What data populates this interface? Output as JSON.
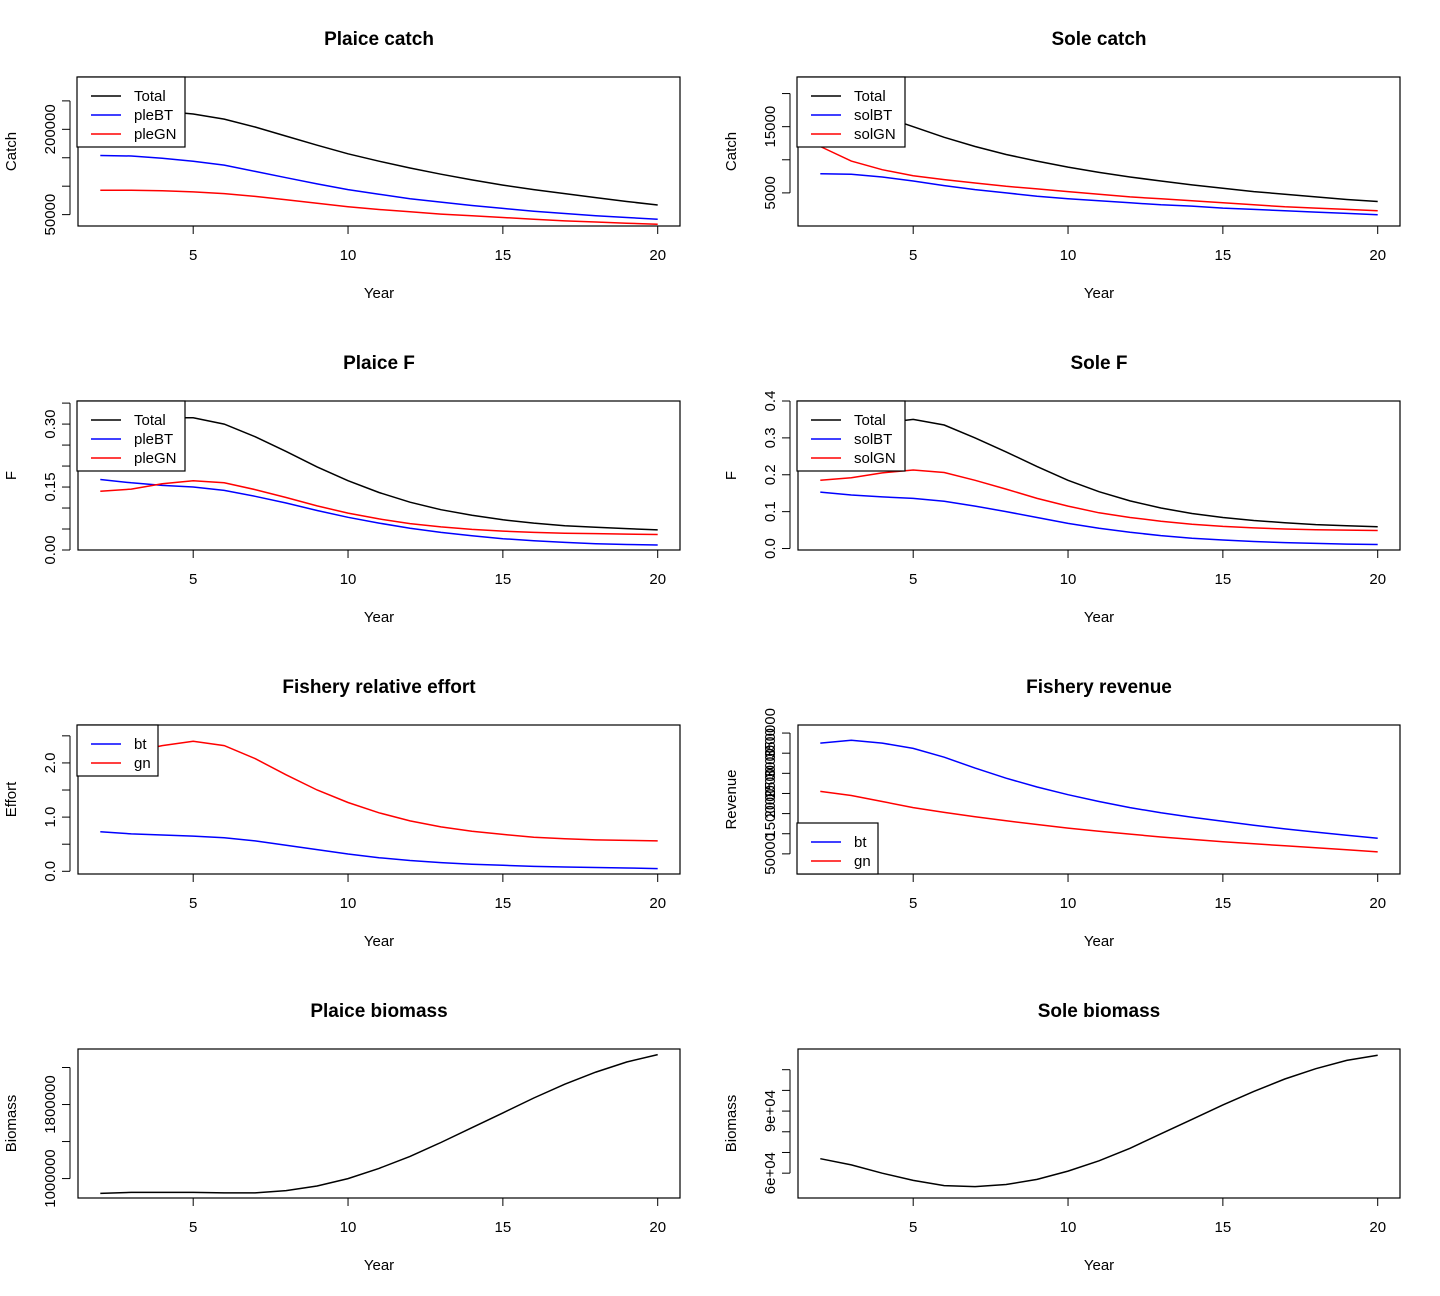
{
  "colors": {
    "black": "#000000",
    "blue": "#0000ff",
    "red": "#ff0000"
  },
  "chart_data": [
    {
      "type": "line",
      "title": "Plaice catch",
      "xlabel": "Year",
      "ylabel": "Catch",
      "xlim": [
        1.28,
        20.72
      ],
      "ylim": [
        30000,
        292000
      ],
      "xticks": [
        {
          "value": 5,
          "label": "5"
        },
        {
          "value": 10,
          "label": "10"
        },
        {
          "value": 15,
          "label": "15"
        },
        {
          "value": 20,
          "label": "20"
        }
      ],
      "yticks": [
        {
          "value": 50000,
          "label": "50000"
        },
        {
          "value": 100000,
          "label": ""
        },
        {
          "value": 150000,
          "label": ""
        },
        {
          "value": 200000,
          "label": "200000"
        },
        {
          "value": 250000,
          "label": ""
        }
      ],
      "legend": {
        "position": "top-left"
      },
      "x": [
        2,
        3,
        4,
        5,
        6,
        7,
        8,
        9,
        10,
        11,
        12,
        13,
        14,
        15,
        16,
        17,
        18,
        19,
        20
      ],
      "series": [
        {
          "name": "Total",
          "color": "black",
          "values": [
            233000,
            234000,
            232000,
            227000,
            218000,
            204000,
            188000,
            172000,
            157000,
            144000,
            132000,
            121000,
            111000,
            102000,
            94000,
            87000,
            80000,
            73000,
            67000
          ]
        },
        {
          "name": "pleBT",
          "color": "blue",
          "values": [
            154000,
            153000,
            149000,
            144000,
            137000,
            126000,
            115000,
            104000,
            94000,
            86000,
            78000,
            72000,
            66000,
            61000,
            56000,
            52000,
            48000,
            45000,
            42000
          ]
        },
        {
          "name": "pleGN",
          "color": "red",
          "values": [
            93000,
            93000,
            92000,
            90000,
            87000,
            82000,
            76000,
            70000,
            64000,
            59000,
            55000,
            51000,
            48000,
            45000,
            42000,
            39000,
            37000,
            35000,
            33000
          ]
        }
      ]
    },
    {
      "type": "line",
      "title": "Sole catch",
      "xlabel": "Year",
      "ylabel": "Catch",
      "xlim": [
        1.28,
        20.72
      ],
      "ylim": [
        0,
        22500
      ],
      "xticks": [
        {
          "value": 5,
          "label": "5"
        },
        {
          "value": 10,
          "label": "10"
        },
        {
          "value": 15,
          "label": "15"
        },
        {
          "value": 20,
          "label": "20"
        }
      ],
      "yticks": [
        {
          "value": 5000,
          "label": "5000"
        },
        {
          "value": 10000,
          "label": ""
        },
        {
          "value": 15000,
          "label": "15000"
        },
        {
          "value": 20000,
          "label": ""
        }
      ],
      "legend": {
        "position": "top-left"
      },
      "x": [
        2,
        3,
        4,
        5,
        6,
        7,
        8,
        9,
        10,
        11,
        12,
        13,
        14,
        15,
        16,
        17,
        18,
        19,
        20
      ],
      "series": [
        {
          "name": "Total",
          "color": "black",
          "values": [
            19800,
            18200,
            16600,
            15000,
            13400,
            12000,
            10800,
            9800,
            8900,
            8100,
            7400,
            6800,
            6200,
            5700,
            5200,
            4800,
            4400,
            4000,
            3700
          ]
        },
        {
          "name": "solBT",
          "color": "blue",
          "values": [
            7900,
            7800,
            7400,
            6800,
            6100,
            5500,
            5000,
            4500,
            4100,
            3800,
            3500,
            3200,
            3000,
            2700,
            2500,
            2300,
            2100,
            1900,
            1700
          ]
        },
        {
          "name": "solGN",
          "color": "red",
          "values": [
            12000,
            9800,
            8500,
            7600,
            7000,
            6500,
            6000,
            5600,
            5200,
            4800,
            4400,
            4100,
            3800,
            3500,
            3200,
            2900,
            2700,
            2500,
            2300
          ]
        }
      ]
    },
    {
      "type": "line",
      "title": "Plaice F",
      "xlabel": "Year",
      "ylabel": "F",
      "xlim": [
        1.28,
        20.72
      ],
      "ylim": [
        0,
        0.355
      ],
      "xticks": [
        {
          "value": 5,
          "label": "5"
        },
        {
          "value": 10,
          "label": "10"
        },
        {
          "value": 15,
          "label": "15"
        },
        {
          "value": 20,
          "label": "20"
        }
      ],
      "yticks": [
        {
          "value": 0.0,
          "label": "0.00"
        },
        {
          "value": 0.05,
          "label": ""
        },
        {
          "value": 0.1,
          "label": ""
        },
        {
          "value": 0.15,
          "label": "0.15"
        },
        {
          "value": 0.2,
          "label": ""
        },
        {
          "value": 0.25,
          "label": ""
        },
        {
          "value": 0.3,
          "label": "0.30"
        },
        {
          "value": 0.35,
          "label": ""
        }
      ],
      "legend": {
        "position": "top-left"
      },
      "x": [
        2,
        3,
        4,
        5,
        6,
        7,
        8,
        9,
        10,
        11,
        12,
        13,
        14,
        15,
        16,
        17,
        18,
        19,
        20
      ],
      "series": [
        {
          "name": "Total",
          "color": "black",
          "values": [
            0.305,
            0.31,
            0.315,
            0.315,
            0.3,
            0.27,
            0.235,
            0.198,
            0.165,
            0.137,
            0.114,
            0.096,
            0.083,
            0.072,
            0.064,
            0.058,
            0.054,
            0.051,
            0.048
          ]
        },
        {
          "name": "pleBT",
          "color": "blue",
          "values": [
            0.168,
            0.16,
            0.154,
            0.15,
            0.142,
            0.128,
            0.112,
            0.094,
            0.078,
            0.064,
            0.052,
            0.042,
            0.034,
            0.027,
            0.022,
            0.018,
            0.015,
            0.013,
            0.012
          ]
        },
        {
          "name": "pleGN",
          "color": "red",
          "values": [
            0.14,
            0.145,
            0.158,
            0.165,
            0.16,
            0.144,
            0.125,
            0.105,
            0.088,
            0.074,
            0.063,
            0.055,
            0.049,
            0.045,
            0.042,
            0.04,
            0.039,
            0.038,
            0.037
          ]
        }
      ]
    },
    {
      "type": "line",
      "title": "Sole F",
      "xlabel": "Year",
      "ylabel": "F",
      "xlim": [
        1.28,
        20.72
      ],
      "ylim": [
        -0.004,
        0.4
      ],
      "xticks": [
        {
          "value": 5,
          "label": "5"
        },
        {
          "value": 10,
          "label": "10"
        },
        {
          "value": 15,
          "label": "15"
        },
        {
          "value": 20,
          "label": "20"
        }
      ],
      "yticks": [
        {
          "value": 0.0,
          "label": "0.0"
        },
        {
          "value": 0.1,
          "label": "0.1"
        },
        {
          "value": 0.2,
          "label": "0.2"
        },
        {
          "value": 0.3,
          "label": "0.3"
        },
        {
          "value": 0.4,
          "label": "0.4"
        }
      ],
      "legend": {
        "position": "top-left"
      },
      "x": [
        2,
        3,
        4,
        5,
        6,
        7,
        8,
        9,
        10,
        11,
        12,
        13,
        14,
        15,
        16,
        17,
        18,
        19,
        20
      ],
      "series": [
        {
          "name": "Total",
          "color": "black",
          "values": [
            0.33,
            0.335,
            0.34,
            0.35,
            0.335,
            0.3,
            0.262,
            0.222,
            0.185,
            0.154,
            0.129,
            0.11,
            0.095,
            0.084,
            0.076,
            0.07,
            0.065,
            0.062,
            0.059
          ]
        },
        {
          "name": "solBT",
          "color": "blue",
          "values": [
            0.153,
            0.145,
            0.14,
            0.136,
            0.128,
            0.115,
            0.1,
            0.084,
            0.068,
            0.055,
            0.044,
            0.035,
            0.028,
            0.023,
            0.019,
            0.016,
            0.014,
            0.012,
            0.011
          ]
        },
        {
          "name": "solGN",
          "color": "red",
          "values": [
            0.185,
            0.192,
            0.205,
            0.213,
            0.206,
            0.185,
            0.161,
            0.136,
            0.115,
            0.097,
            0.084,
            0.074,
            0.066,
            0.06,
            0.056,
            0.053,
            0.051,
            0.05,
            0.049
          ]
        }
      ]
    },
    {
      "type": "line",
      "title": "Fishery relative effort",
      "xlabel": "Year",
      "ylabel": "Effort",
      "xlim": [
        1.28,
        20.72
      ],
      "ylim": [
        -0.05,
        2.7
      ],
      "xticks": [
        {
          "value": 5,
          "label": "5"
        },
        {
          "value": 10,
          "label": "10"
        },
        {
          "value": 15,
          "label": "15"
        },
        {
          "value": 20,
          "label": "20"
        }
      ],
      "yticks": [
        {
          "value": 0.0,
          "label": "0.0"
        },
        {
          "value": 0.5,
          "label": ""
        },
        {
          "value": 1.0,
          "label": "1.0"
        },
        {
          "value": 1.5,
          "label": ""
        },
        {
          "value": 2.0,
          "label": "2.0"
        },
        {
          "value": 2.5,
          "label": ""
        }
      ],
      "legend": {
        "position": "top-left"
      },
      "x": [
        2,
        3,
        4,
        5,
        6,
        7,
        8,
        9,
        10,
        11,
        12,
        13,
        14,
        15,
        16,
        17,
        18,
        19,
        20
      ],
      "series": [
        {
          "name": "bt",
          "color": "blue",
          "values": [
            0.73,
            0.69,
            0.67,
            0.65,
            0.62,
            0.56,
            0.48,
            0.4,
            0.32,
            0.25,
            0.2,
            0.16,
            0.13,
            0.11,
            0.09,
            0.08,
            0.07,
            0.06,
            0.05
          ]
        },
        {
          "name": "gn",
          "color": "red",
          "values": [
            1.95,
            2.2,
            2.32,
            2.4,
            2.32,
            2.08,
            1.78,
            1.5,
            1.27,
            1.08,
            0.93,
            0.82,
            0.74,
            0.68,
            0.63,
            0.6,
            0.58,
            0.57,
            0.56
          ]
        }
      ]
    },
    {
      "type": "line",
      "title": "Fishery revenue",
      "xlabel": "Year",
      "ylabel": "Revenue",
      "xlim": [
        1.28,
        20.72
      ],
      "ylim": [
        0,
        370000
      ],
      "xticks": [
        {
          "value": 5,
          "label": "5"
        },
        {
          "value": 10,
          "label": "10"
        },
        {
          "value": 15,
          "label": "15"
        },
        {
          "value": 20,
          "label": "20"
        }
      ],
      "yticks": [
        {
          "value": 50000,
          "label": "50000"
        },
        {
          "value": 100000,
          "label": ""
        },
        {
          "value": 150000,
          "label": "150000"
        },
        {
          "value": 200000,
          "label": "200000"
        },
        {
          "value": 250000,
          "label": "250000"
        },
        {
          "value": 300000,
          "label": "300000"
        },
        {
          "value": 350000,
          "label": "350000"
        }
      ],
      "legend": {
        "position": "bottom-left"
      },
      "x": [
        2,
        3,
        4,
        5,
        6,
        7,
        8,
        9,
        10,
        11,
        12,
        13,
        14,
        15,
        16,
        17,
        18,
        19,
        20
      ],
      "series": [
        {
          "name": "bt",
          "color": "blue",
          "values": [
            325000,
            332000,
            325000,
            312000,
            290000,
            263000,
            238000,
            216000,
            197000,
            180000,
            165000,
            152000,
            141000,
            131000,
            121000,
            112000,
            104000,
            96000,
            89000
          ]
        },
        {
          "name": "gn",
          "color": "red",
          "values": [
            205000,
            195000,
            180000,
            165000,
            153000,
            142000,
            132000,
            123000,
            114000,
            106000,
            99000,
            92000,
            86000,
            80000,
            75000,
            70000,
            65000,
            60000,
            55000
          ]
        }
      ]
    },
    {
      "type": "line",
      "title": "Plaice biomass",
      "xlabel": "Year",
      "ylabel": "Biomass",
      "xlim": [
        1.28,
        20.72
      ],
      "ylim": [
        790000,
        2400000
      ],
      "xticks": [
        {
          "value": 5,
          "label": "5"
        },
        {
          "value": 10,
          "label": "10"
        },
        {
          "value": 15,
          "label": "15"
        },
        {
          "value": 20,
          "label": "20"
        }
      ],
      "yticks": [
        {
          "value": 1000000,
          "label": "1000000"
        },
        {
          "value": 1400000,
          "label": ""
        },
        {
          "value": 1800000,
          "label": "1800000"
        },
        {
          "value": 2200000,
          "label": ""
        }
      ],
      "legend": null,
      "x": [
        2,
        3,
        4,
        5,
        6,
        7,
        8,
        9,
        10,
        11,
        12,
        13,
        14,
        15,
        16,
        17,
        18,
        19,
        20
      ],
      "series": [
        {
          "name": "Plaice biomass",
          "color": "black",
          "values": [
            840000,
            850000,
            850000,
            850000,
            845000,
            845000,
            870000,
            920000,
            1000000,
            1110000,
            1240000,
            1390000,
            1550000,
            1710000,
            1870000,
            2020000,
            2150000,
            2260000,
            2340000
          ]
        }
      ]
    },
    {
      "type": "line",
      "title": "Sole biomass",
      "xlabel": "Year",
      "ylabel": "Biomass",
      "xlim": [
        1.28,
        20.72
      ],
      "ylim": [
        48000,
        120000
      ],
      "xticks": [
        {
          "value": 5,
          "label": "5"
        },
        {
          "value": 10,
          "label": "10"
        },
        {
          "value": 15,
          "label": "15"
        },
        {
          "value": 20,
          "label": "20"
        }
      ],
      "yticks": [
        {
          "value": 60000,
          "label": "6e+04"
        },
        {
          "value": 70000,
          "label": ""
        },
        {
          "value": 80000,
          "label": ""
        },
        {
          "value": 90000,
          "label": "9e+04"
        },
        {
          "value": 100000,
          "label": ""
        },
        {
          "value": 110000,
          "label": ""
        }
      ],
      "legend": null,
      "x": [
        2,
        3,
        4,
        5,
        6,
        7,
        8,
        9,
        10,
        11,
        12,
        13,
        14,
        15,
        16,
        17,
        18,
        19,
        20
      ],
      "series": [
        {
          "name": "Sole biomass",
          "color": "black",
          "values": [
            67000,
            64000,
            60000,
            56500,
            54000,
            53500,
            54500,
            57000,
            61000,
            66000,
            72000,
            79000,
            86000,
            93000,
            99500,
            105500,
            110500,
            114500,
            117000
          ]
        }
      ]
    }
  ]
}
